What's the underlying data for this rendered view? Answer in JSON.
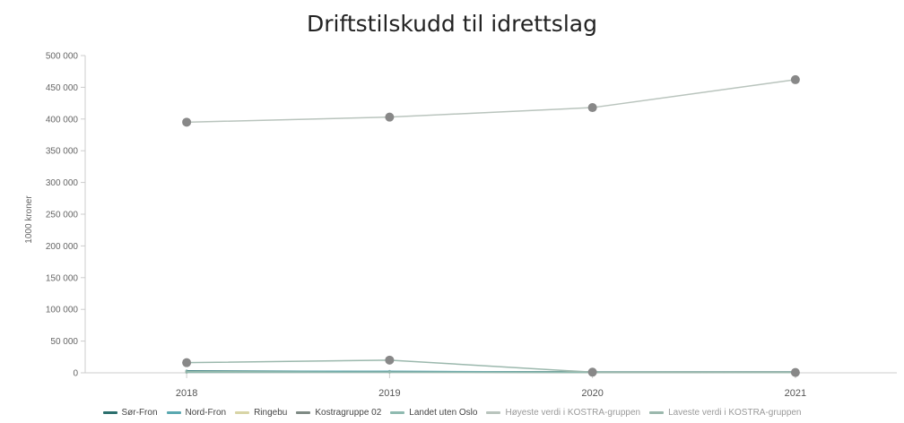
{
  "chart_data": {
    "type": "line",
    "title": "Driftstilskudd til idrettslag",
    "xlabel": "",
    "ylabel": "1000 kroner",
    "categories": [
      "2018",
      "2019",
      "2020",
      "2021"
    ],
    "ylim": [
      0,
      500000
    ],
    "yticks": [
      0,
      50000,
      100000,
      150000,
      200000,
      250000,
      300000,
      350000,
      400000,
      450000,
      500000
    ],
    "ytick_labels": [
      "0",
      "50 000",
      "100 000",
      "150 000",
      "200 000",
      "250 000",
      "300 000",
      "350 000",
      "400 000",
      "450 000",
      "500 000"
    ],
    "grid": false,
    "legend_position": "bottom",
    "series": [
      {
        "name": "Sør-Fron",
        "color": "#2b6f6d",
        "values": [
          3000,
          2000,
          1500,
          1500
        ],
        "markers": false
      },
      {
        "name": "Nord-Fron",
        "color": "#5aa8b0",
        "values": [
          2000,
          2500,
          1000,
          1000
        ],
        "markers": false
      },
      {
        "name": "Ringebu",
        "color": "#d8d4a6",
        "values": [
          1500,
          1000,
          800,
          700
        ],
        "markers": false
      },
      {
        "name": "Kostragruppe 02",
        "color": "#7e8a84",
        "values": [
          900,
          1200,
          700,
          800
        ],
        "markers": false
      },
      {
        "name": "Landet uten Oslo",
        "color": "#8fbab0",
        "values": [
          800,
          900,
          700,
          700
        ],
        "markers": false
      },
      {
        "name": "Høyeste verdi i KOSTRA-gruppen",
        "color": "#b9c4bd",
        "values": [
          395000,
          403000,
          418000,
          462000
        ],
        "markers": true
      },
      {
        "name": "Laveste verdi i KOSTRA-gruppen",
        "color": "#9bb8ad",
        "values": [
          16000,
          20000,
          1000,
          500
        ],
        "markers": true
      }
    ]
  }
}
